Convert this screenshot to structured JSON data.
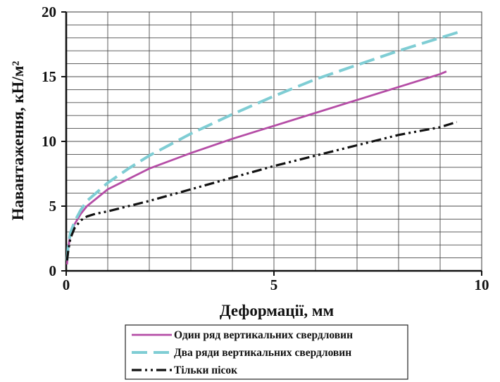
{
  "chart_data": {
    "type": "line",
    "xlabel": "Деформації, мм",
    "ylabel": "Навантаження, кН/м²",
    "xlim": [
      0,
      10
    ],
    "ylim": [
      0,
      20
    ],
    "x_ticks": [
      "0",
      "5",
      "10"
    ],
    "y_ticks": [
      "0",
      "5",
      "10",
      "15",
      "20"
    ],
    "grid": true,
    "legend_position": "bottom",
    "series": [
      {
        "name": "Один ряд вертикальних свердловин",
        "color": "#b54da6",
        "style": "solid",
        "x": [
          0.02,
          0.05,
          0.1,
          0.2,
          0.35,
          0.5,
          1,
          2,
          3,
          4,
          5,
          6,
          7,
          8,
          9,
          9.15
        ],
        "y": [
          0.5,
          1.8,
          2.8,
          3.6,
          4.4,
          5.0,
          6.3,
          7.9,
          9.1,
          10.2,
          11.2,
          12.2,
          13.2,
          14.2,
          15.2,
          15.4
        ]
      },
      {
        "name": "Два ряди вертикальних свердловин",
        "color": "#7fcdd4",
        "style": "dashed",
        "x": [
          0.02,
          0.05,
          0.1,
          0.2,
          0.35,
          0.5,
          1,
          1.5,
          2,
          3,
          4,
          5,
          6,
          7,
          8,
          9,
          9.5
        ],
        "y": [
          0.8,
          2.0,
          2.9,
          3.8,
          4.7,
          5.4,
          6.8,
          7.9,
          8.9,
          10.6,
          12.1,
          13.5,
          14.8,
          15.9,
          17.0,
          18.0,
          18.5
        ]
      },
      {
        "name": "Тільки пісок",
        "color": "#111111",
        "style": "dashdotdot",
        "x": [
          0.02,
          0.05,
          0.1,
          0.2,
          0.35,
          0.5,
          0.7,
          1,
          2,
          3,
          4,
          5,
          6,
          7,
          8,
          9,
          9.4
        ],
        "y": [
          0.8,
          1.6,
          2.5,
          3.3,
          3.9,
          4.2,
          4.4,
          4.6,
          5.4,
          6.3,
          7.2,
          8.1,
          8.9,
          9.7,
          10.5,
          11.1,
          11.5
        ]
      }
    ]
  }
}
